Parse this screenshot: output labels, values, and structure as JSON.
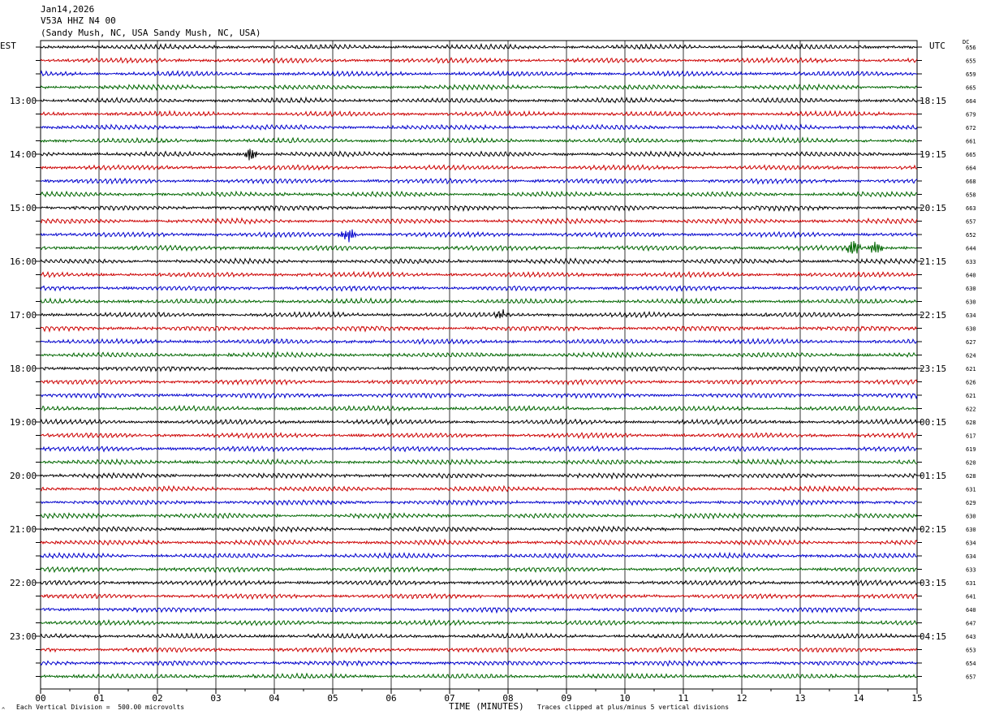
{
  "header": {
    "date": "Jan14,2026",
    "station": "V53A HHZ N4 00",
    "location": "(Sandy Mush, NC, USA Sandy Mush, NC, USA)"
  },
  "timezones": {
    "left": "EST",
    "right": "UTC"
  },
  "dc_header": "DC",
  "footer": {
    "scale_note": "Each Vertical Division =  500.00 microvolts",
    "clip_note": "Traces clipped at plus/minus 5 vertical divisions",
    "corner_mark": "^"
  },
  "colors": {
    "line_cycle": [
      "#000000",
      "#cc0000",
      "#0000cc",
      "#006600"
    ],
    "grid": "#000000"
  },
  "chart_data": {
    "type": "line",
    "title": "Jan14,2026 V53A HHZ N4 00",
    "xlabel": "TIME (MINUTES)",
    "xlim": [
      0,
      15
    ],
    "x_ticks": [
      "00",
      "01",
      "02",
      "03",
      "04",
      "05",
      "06",
      "07",
      "08",
      "09",
      "10",
      "11",
      "12",
      "13",
      "14",
      "15"
    ],
    "trace_interval_minutes": 15,
    "num_traces": 48,
    "left_hour_labels": [
      "13:00",
      "14:00",
      "15:00",
      "16:00",
      "17:00",
      "18:00",
      "19:00",
      "20:00",
      "21:00",
      "22:00",
      "23:00"
    ],
    "right_hour_labels": [
      "18:15",
      "19:15",
      "20:15",
      "21:15",
      "22:15",
      "23:15",
      "00:15",
      "01:15",
      "02:15",
      "03:15",
      "04:15"
    ],
    "hour_label_first_trace": 4,
    "dc_offsets": [
      656,
      655,
      659,
      665,
      664,
      679,
      672,
      661,
      665,
      664,
      668,
      658,
      663,
      657,
      652,
      644,
      633,
      640,
      630,
      630,
      634,
      630,
      627,
      624,
      621,
      626,
      621,
      622,
      628,
      617,
      619,
      620,
      628,
      631,
      629,
      630,
      630,
      634,
      634,
      633,
      631,
      641,
      640,
      647,
      643,
      653,
      654,
      657
    ],
    "events": [
      {
        "trace": 8,
        "minute": 3.6,
        "amplitude": 10
      },
      {
        "trace": 14,
        "minute": 5.25,
        "amplitude": 11
      },
      {
        "trace": 15,
        "minute": 13.9,
        "amplitude": 13
      },
      {
        "trace": 15,
        "minute": 14.3,
        "amplitude": 11
      },
      {
        "trace": 20,
        "minute": 7.9,
        "amplitude": 6
      }
    ],
    "grid": true
  }
}
